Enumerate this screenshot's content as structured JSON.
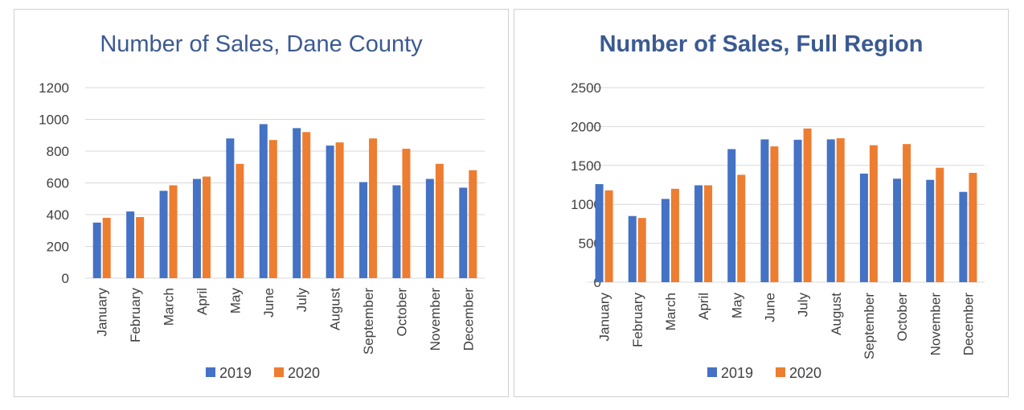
{
  "colors": {
    "series_2019": "#4472c4",
    "series_2020": "#ed7d31",
    "grid": "#d9d9d9",
    "title": "#3b5a92"
  },
  "chart_data": [
    {
      "type": "bar",
      "title": "Number of Sales, Dane County",
      "categories": [
        "January",
        "February",
        "March",
        "April",
        "May",
        "June",
        "July",
        "August",
        "September",
        "October",
        "November",
        "December"
      ],
      "series": [
        {
          "name": "2019",
          "values": [
            350,
            420,
            550,
            625,
            880,
            970,
            945,
            835,
            605,
            585,
            625,
            570
          ]
        },
        {
          "name": "2020",
          "values": [
            380,
            385,
            585,
            640,
            720,
            870,
            920,
            855,
            880,
            815,
            720,
            680
          ]
        }
      ],
      "ylim": [
        0,
        1200
      ],
      "yticks": [
        0,
        200,
        400,
        600,
        800,
        1000,
        1200
      ],
      "grid": true,
      "legend": "bottom"
    },
    {
      "type": "bar",
      "title": "Number of Sales, Full Region",
      "categories": [
        "January",
        "February",
        "March",
        "April",
        "May",
        "June",
        "July",
        "August",
        "September",
        "October",
        "November",
        "December"
      ],
      "series": [
        {
          "name": "2019",
          "values": [
            1260,
            850,
            1070,
            1245,
            1710,
            1835,
            1830,
            1835,
            1395,
            1330,
            1315,
            1160
          ]
        },
        {
          "name": "2020",
          "values": [
            1180,
            825,
            1200,
            1245,
            1380,
            1745,
            1975,
            1850,
            1760,
            1775,
            1470,
            1405
          ]
        }
      ],
      "ylim": [
        0,
        2500
      ],
      "yticks": [
        0,
        500,
        1000,
        1500,
        2000,
        2500
      ],
      "grid": true,
      "legend": "bottom"
    }
  ]
}
